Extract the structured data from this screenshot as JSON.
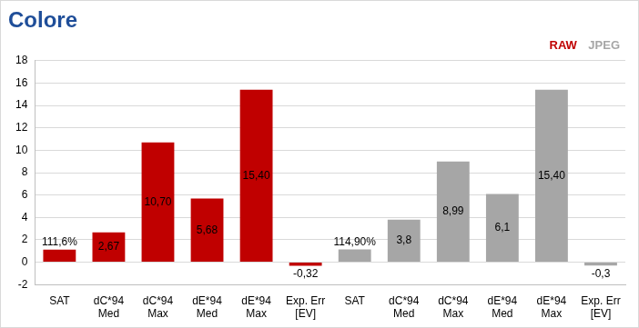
{
  "chart_data": {
    "type": "bar",
    "title": "Colore",
    "categories": [
      "SAT",
      "dC*94\nMed",
      "dC*94\nMax",
      "dE*94\nMed",
      "dE*94\nMax",
      "Exp. Err\n[EV]",
      "SAT",
      "dC*94\nMed",
      "dC*94\nMax",
      "dE*94\nMed",
      "dE*94\nMax",
      "Exp. Err\n[EV]"
    ],
    "series": [
      {
        "name": "RAW",
        "color": "#c00000",
        "values": [
          1.116,
          2.67,
          10.7,
          5.68,
          15.4,
          -0.32,
          null,
          null,
          null,
          null,
          null,
          null
        ],
        "value_labels": [
          "111,6%",
          "2,67",
          "10,70",
          "5,68",
          "15,40",
          "-0,32",
          null,
          null,
          null,
          null,
          null,
          null
        ]
      },
      {
        "name": "JPEG",
        "color": "#a6a6a6",
        "values": [
          null,
          null,
          null,
          null,
          null,
          null,
          1.149,
          3.8,
          8.99,
          6.1,
          15.4,
          -0.3
        ],
        "value_labels": [
          null,
          null,
          null,
          null,
          null,
          null,
          "114,90%",
          "3,8",
          "8,99",
          "6,1",
          "15,40",
          "-0,3"
        ]
      }
    ],
    "ylim": [
      -2,
      18
    ],
    "yticks": [
      -2,
      0,
      2,
      4,
      6,
      8,
      10,
      12,
      14,
      16,
      18
    ],
    "grid": true,
    "legend": "top-right",
    "data_labels": true
  }
}
